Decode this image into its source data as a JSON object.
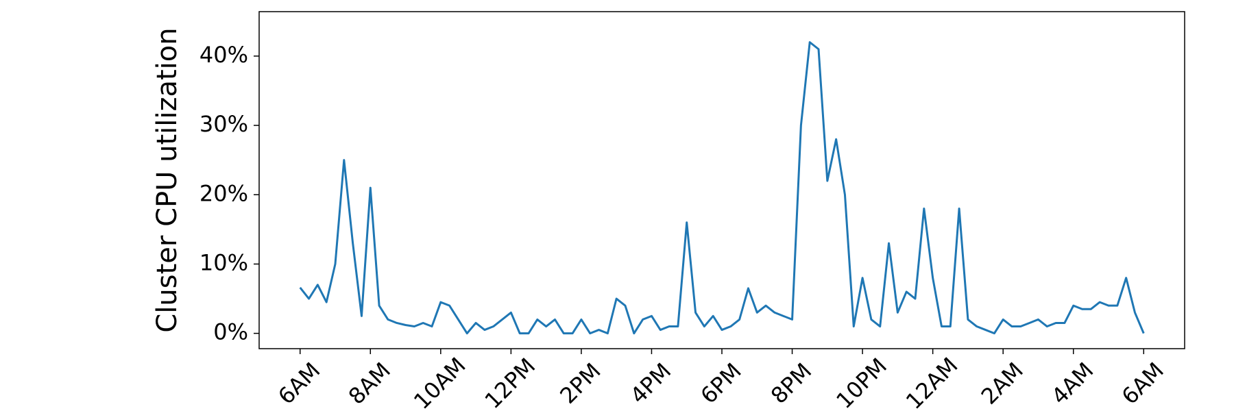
{
  "chart_data": {
    "type": "line",
    "y_label": "Cluster CPU utilization",
    "categories": [
      "6AM",
      null,
      null,
      null,
      null,
      null,
      null,
      null,
      "8AM",
      null,
      null,
      null,
      null,
      null,
      null,
      null,
      "10AM",
      null,
      null,
      null,
      null,
      null,
      null,
      null,
      "12PM",
      null,
      null,
      null,
      null,
      null,
      null,
      null,
      "2PM",
      null,
      null,
      null,
      null,
      null,
      null,
      null,
      "4PM",
      null,
      null,
      null,
      null,
      null,
      null,
      null,
      "6PM",
      null,
      null,
      null,
      null,
      null,
      null,
      null,
      "8PM",
      null,
      null,
      null,
      null,
      null,
      null,
      null,
      "10PM",
      null,
      null,
      null,
      null,
      null,
      null,
      null,
      "12AM",
      null,
      null,
      null,
      null,
      null,
      null,
      null,
      "2AM",
      null,
      null,
      null,
      null,
      null,
      null,
      null,
      "4AM",
      null,
      null,
      null,
      null,
      null,
      null,
      null,
      "6AM"
    ],
    "series": [
      {
        "color": "#1f77b4",
        "values": [
          6.6,
          5.0,
          7.0,
          4.5,
          10.0,
          25.0,
          13.0,
          2.5,
          21.0,
          4.0,
          2.0,
          1.5,
          1.2,
          1.0,
          1.5,
          1.0,
          4.5,
          4.0,
          2.0,
          0.0,
          1.5,
          0.5,
          1.0,
          2.0,
          3.0,
          0.0,
          0.0,
          2.0,
          1.0,
          2.0,
          0.0,
          0.0,
          2.0,
          0.0,
          0.5,
          0.0,
          5.0,
          4.0,
          0.0,
          2.0,
          2.5,
          0.5,
          1.0,
          1.0,
          16.0,
          3.0,
          1.0,
          2.5,
          0.5,
          1.0,
          2.0,
          6.5,
          3.0,
          4.0,
          3.0,
          2.5,
          2.0,
          30.0,
          42.0,
          41.0,
          22.0,
          28.0,
          20.0,
          1.0,
          8.0,
          2.0,
          1.0,
          13.0,
          3.0,
          6.0,
          5.0,
          18.0,
          8.0,
          1.0,
          1.0,
          18.0,
          2.0,
          1.0,
          0.5,
          0.0,
          2.0,
          1.0,
          1.0,
          1.5,
          2.0,
          1.0,
          1.5,
          1.5,
          4.0,
          3.5,
          3.5,
          4.5,
          4.0,
          4.0,
          8.0,
          3.0,
          0.0
        ]
      }
    ],
    "ylim": [
      -2.21,
      46.41
    ],
    "yticks": [
      {
        "value": 0,
        "label": "0%"
      },
      {
        "value": 10,
        "label": "10%"
      },
      {
        "value": 20,
        "label": "20%"
      },
      {
        "value": 30,
        "label": "30%"
      },
      {
        "value": 40,
        "label": "40%"
      }
    ],
    "grid": false
  }
}
